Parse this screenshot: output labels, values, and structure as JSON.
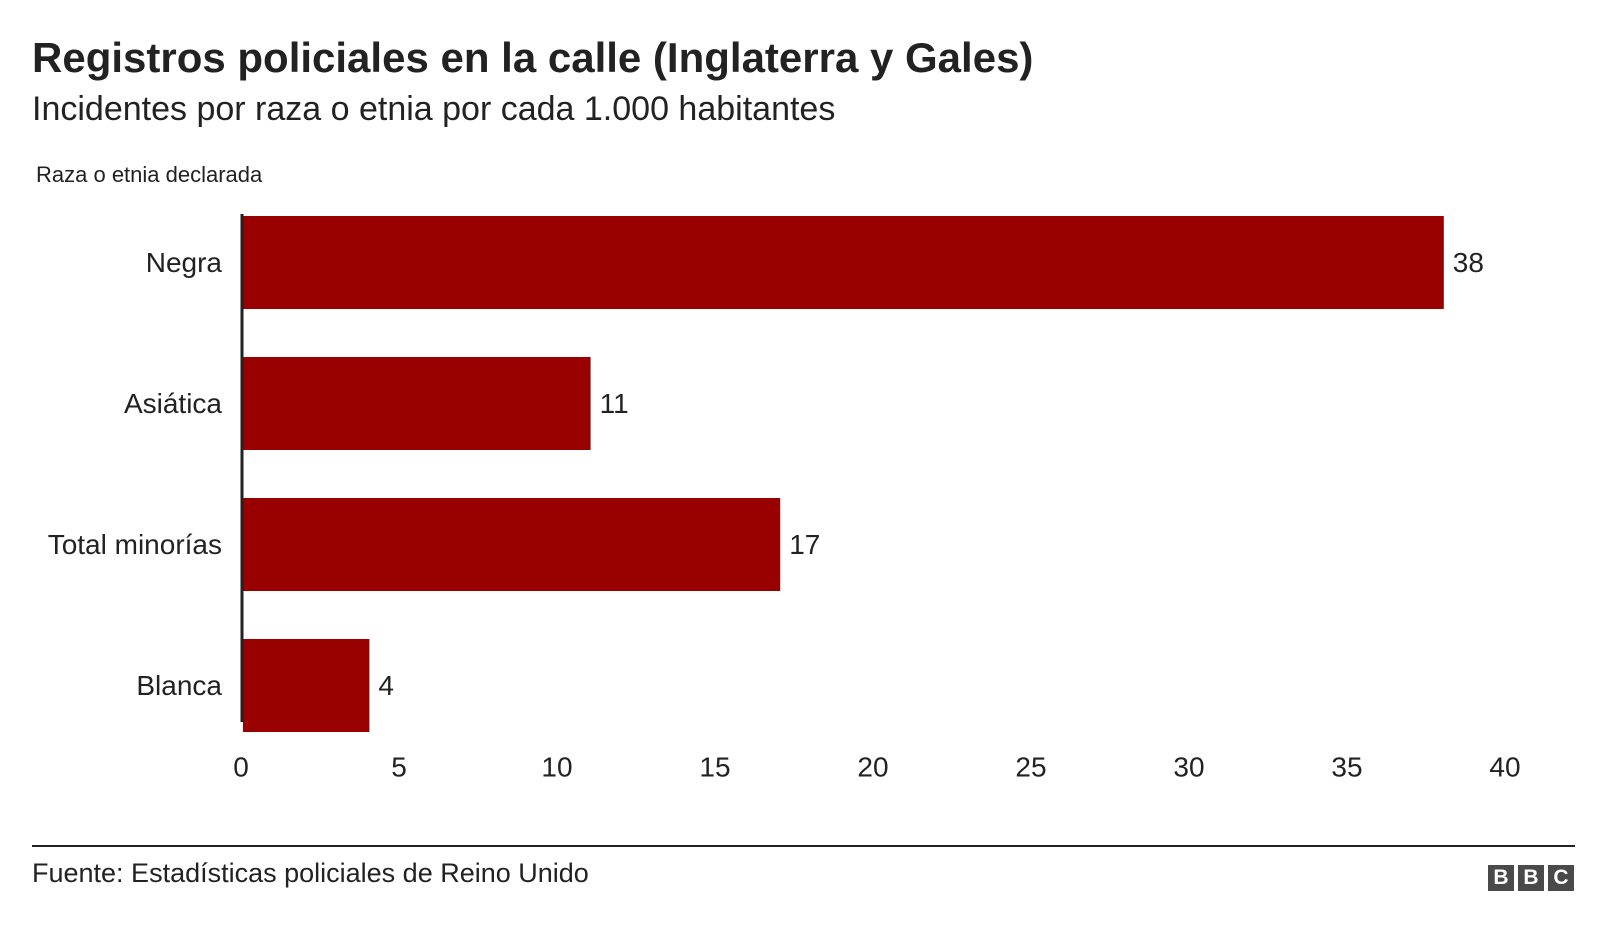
{
  "header": {
    "title": "Registros policiales en la calle (Inglaterra y Gales)",
    "subtitle": "Incidentes por raza o etnia por cada 1.000 habitantes"
  },
  "chart_data": {
    "type": "bar",
    "orientation": "horizontal",
    "ylabel": "Raza o etnia declarada",
    "categories": [
      "Negra",
      "Asiática",
      "Total minorías",
      "Blanca"
    ],
    "values": [
      38,
      11,
      17,
      4
    ],
    "data_labels": [
      "38",
      "11",
      "17",
      "4"
    ],
    "xlim": [
      0,
      40
    ],
    "x_ticks": [
      "0",
      "5",
      "10",
      "15",
      "20",
      "25",
      "30",
      "35",
      "40"
    ],
    "grid": false,
    "bar_color": "#990000"
  },
  "footer": {
    "source": "Fuente: Estadísticas policiales de Reino Unido",
    "logo_letters": [
      "B",
      "B",
      "C"
    ]
  },
  "colors": {
    "bar": "#990000",
    "text": "#222222",
    "logo": "#4a4a4a"
  }
}
